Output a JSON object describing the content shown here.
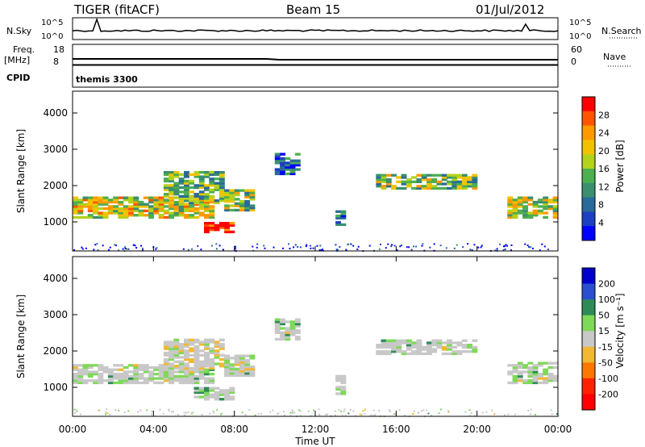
{
  "header": {
    "title": "TIGER (fitACF)",
    "beam": "Beam 15",
    "date": "01/Jul/2012"
  },
  "chart_data": [
    {
      "type": "line",
      "panel": "noise",
      "left_label": "N.Sky",
      "right_label": "N.Search",
      "yticks_left": [
        "10^5",
        "10^0"
      ],
      "yticks_right": [
        "10^5",
        "10^0"
      ]
    },
    {
      "type": "line",
      "panel": "freq-nave",
      "left_label_1": "Freq.",
      "left_label_2": "[MHz]",
      "right_label": "Nave",
      "yticks_left": [
        "18",
        "8"
      ],
      "yticks_right": [
        "60",
        "0"
      ],
      "cpid_label": "CPID",
      "cpid_value": "themis 3300"
    },
    {
      "type": "heatmap",
      "panel": "power",
      "ylabel": "Slant Range [km]",
      "ylim": [
        200,
        4600
      ],
      "yticks": [
        "1000",
        "2000",
        "3000",
        "4000"
      ],
      "colorbar_label": "Power [dB]",
      "colorbar_ticks": [
        "28",
        "24",
        "20",
        "16",
        "12",
        "8",
        "4"
      ],
      "colorbar_colors": [
        "#ff0000",
        "#ff5500",
        "#ff9900",
        "#f2c200",
        "#b3d21c",
        "#4caf50",
        "#3a8f6f",
        "#2a6a9a",
        "#1c3fc4",
        "#0000ff"
      ],
      "echo_regions": [
        {
          "t0": 0.0,
          "t1": 7.0,
          "r0": 1100,
          "r1": 1700,
          "level": 0.6
        },
        {
          "t0": 4.5,
          "t1": 7.5,
          "r0": 1500,
          "r1": 2400,
          "level": 0.45
        },
        {
          "t0": 6.5,
          "t1": 8.0,
          "r0": 700,
          "r1": 950,
          "level": 1.0
        },
        {
          "t0": 7.5,
          "t1": 9.0,
          "r0": 1300,
          "r1": 1900,
          "level": 0.5
        },
        {
          "t0": 10.0,
          "t1": 11.2,
          "r0": 2300,
          "r1": 2900,
          "level": 0.2
        },
        {
          "t0": 13.0,
          "t1": 13.5,
          "r0": 900,
          "r1": 1300,
          "level": 0.25
        },
        {
          "t0": 15.0,
          "t1": 19.8,
          "r0": 1900,
          "r1": 2300,
          "level": 0.5
        },
        {
          "t0": 21.5,
          "t1": 24.0,
          "r0": 1100,
          "r1": 1700,
          "level": 0.55
        }
      ]
    },
    {
      "type": "heatmap",
      "panel": "velocity",
      "ylabel": "Slant Range [km]",
      "ylim": [
        200,
        4600
      ],
      "yticks": [
        "1000",
        "2000",
        "3000",
        "4000"
      ],
      "colorbar_label": "Velocity [m s⁻¹]",
      "colorbar_ticks": [
        "200",
        "100",
        "50",
        "15",
        "-15",
        "-50",
        "-100",
        "-200"
      ],
      "colorbar_colors": [
        "#0000cc",
        "#2a4fd0",
        "#2e8b57",
        "#7ed957",
        "#c8c8c8",
        "#f2b830",
        "#ff7700",
        "#ff2200",
        "#ff0000"
      ],
      "xticks": [
        "00:00",
        "04:00",
        "08:00",
        "12:00",
        "16:00",
        "20:00",
        "00:00"
      ],
      "xlabel": "Time UT",
      "xlim": [
        0,
        24
      ],
      "echo_regions": [
        {
          "t0": 0.0,
          "t1": 7.0,
          "r0": 1100,
          "r1": 1600,
          "v": 0
        },
        {
          "t0": 4.5,
          "t1": 7.5,
          "r0": 1500,
          "r1": 2300,
          "v": -40
        },
        {
          "t0": 6.0,
          "t1": 8.0,
          "r0": 650,
          "r1": 1000,
          "v": 40
        },
        {
          "t0": 7.5,
          "t1": 9.0,
          "r0": 1300,
          "r1": 1900,
          "v": 0
        },
        {
          "t0": 10.0,
          "t1": 11.2,
          "r0": 2300,
          "r1": 2900,
          "v": 0
        },
        {
          "t0": 13.0,
          "t1": 13.5,
          "r0": 800,
          "r1": 1300,
          "v": 0
        },
        {
          "t0": 15.0,
          "t1": 19.8,
          "r0": 1900,
          "r1": 2300,
          "v": 0
        },
        {
          "t0": 21.5,
          "t1": 24.0,
          "r0": 1100,
          "r1": 1700,
          "v": 0
        }
      ]
    }
  ]
}
